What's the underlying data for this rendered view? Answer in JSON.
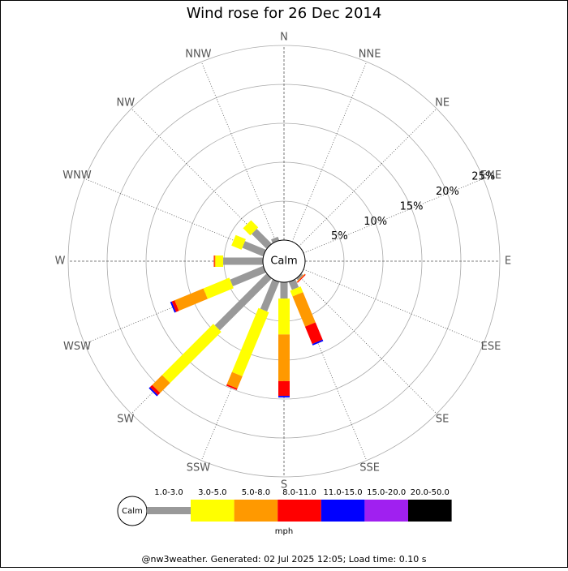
{
  "chart_data": {
    "type": "windrose",
    "title": "Wind rose for 26 Dec 2014",
    "categories": [
      "N",
      "NNE",
      "NE",
      "ENE",
      "E",
      "ESE",
      "SE",
      "SSE",
      "S",
      "SSW",
      "SW",
      "WSW",
      "W",
      "WNW",
      "NW",
      "NNW"
    ],
    "calm_label": "Calm",
    "rlim": [
      0,
      25
    ],
    "rticks": [
      {
        "value": 5,
        "label": "5%"
      },
      {
        "value": 10,
        "label": "10%"
      },
      {
        "value": 15,
        "label": "15%"
      },
      {
        "value": 20,
        "label": "20%"
      },
      {
        "value": 25,
        "label": "25%"
      }
    ],
    "series": [
      {
        "name": "1.0-3.0",
        "color": "#999999",
        "values": [
          0,
          0,
          0,
          0,
          0,
          0,
          0.3,
          1.1,
          2.1,
          4.1,
          9.4,
          4.6,
          5.1,
          2.9,
          2.7,
          0.5
        ]
      },
      {
        "name": "3.0-5.0",
        "color": "#ffff00",
        "values": [
          0,
          0,
          0,
          0,
          0,
          0,
          0,
          0.8,
          4.6,
          8.9,
          9.3,
          3.6,
          1.0,
          1.4,
          1.3,
          0
        ]
      },
      {
        "name": "5.0-8.0",
        "color": "#ff9900",
        "values": [
          0,
          0,
          0,
          0,
          0,
          0,
          0.1,
          4.2,
          6.0,
          1.7,
          1.8,
          4.0,
          0.1,
          0,
          0,
          0
        ]
      },
      {
        "name": "8.0-11.0",
        "color": "#ff0000",
        "values": [
          0,
          0,
          0,
          0,
          0,
          0,
          0.1,
          2.4,
          1.9,
          0.2,
          0.4,
          0.4,
          0.1,
          0,
          0,
          0
        ]
      },
      {
        "name": "11.0-15.0",
        "color": "#0000ff",
        "values": [
          0,
          0,
          0,
          0,
          0,
          0,
          0,
          0.2,
          0.2,
          0,
          0.2,
          0.2,
          0,
          0,
          0,
          0
        ]
      },
      {
        "name": "15.0-20.0",
        "color": "#a020f0",
        "values": [
          0,
          0,
          0,
          0,
          0,
          0,
          0,
          0,
          0,
          0,
          0,
          0,
          0,
          0,
          0,
          0
        ]
      },
      {
        "name": "20.0-50.0",
        "color": "#000000",
        "values": [
          0,
          0,
          0,
          0,
          0,
          0,
          0,
          0,
          0,
          0,
          0,
          0,
          0,
          0,
          0,
          0
        ]
      }
    ],
    "legend_unit": "mph",
    "footer": "@nw3weather. Generated: 02 Jul 2025 12:05; Load time: 0.10 s"
  }
}
